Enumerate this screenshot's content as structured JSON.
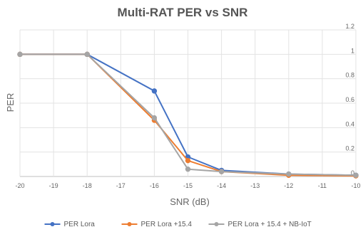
{
  "chart_data": {
    "type": "line",
    "title": "Multi-RAT PER vs SNR",
    "xlabel": "SNR (dB)",
    "ylabel": "PER",
    "x_ticks": [
      "-20",
      "-19",
      "-18",
      "-17",
      "-16",
      "-15",
      "-14",
      "-13",
      "-12",
      "-11",
      "-10"
    ],
    "y_ticks": [
      "0",
      "0.2",
      "0.4",
      "0.6",
      "0.8",
      "1",
      "1.2"
    ],
    "xlim": [
      -20,
      -10
    ],
    "ylim": [
      0,
      1.2
    ],
    "grid": true,
    "legend_position": "bottom",
    "series": [
      {
        "name": "PER Lora",
        "color": "#4472C4",
        "x": [
          -20,
          -18,
          -16,
          -15,
          -14,
          -12,
          -10
        ],
        "y": [
          1,
          1,
          0.7,
          0.16,
          0.05,
          0.02,
          0.01
        ]
      },
      {
        "name": "PER Lora +15.4",
        "color": "#ED7D31",
        "x": [
          -20,
          -18,
          -16,
          -15,
          -14,
          -12,
          -10
        ],
        "y": [
          1,
          1,
          0.46,
          0.13,
          0.04,
          0.01,
          0.005
        ]
      },
      {
        "name": "PER Lora + 15.4 + NB-IoT",
        "color": "#A5A5A5",
        "x": [
          -20,
          -18,
          -16,
          -15,
          -14,
          -12,
          -10
        ],
        "y": [
          1,
          1,
          0.48,
          0.06,
          0.04,
          0.02,
          0.01
        ]
      }
    ]
  }
}
